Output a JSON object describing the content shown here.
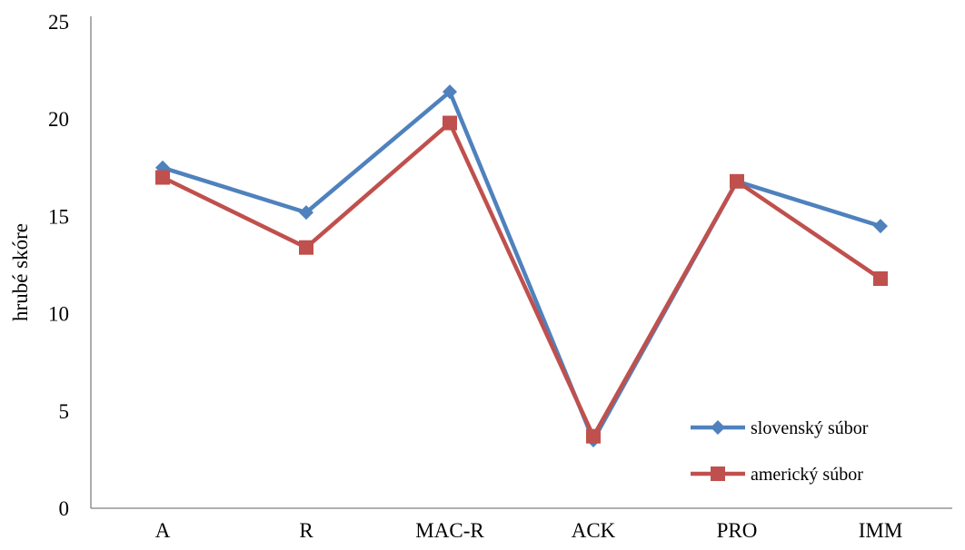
{
  "chart_data": {
    "type": "line",
    "title": "",
    "xlabel": "",
    "ylabel": "hrubé skóre",
    "categories": [
      "A",
      "R",
      "MAC-R",
      "ACK",
      "PRO",
      "IMM"
    ],
    "ylim": [
      0,
      25
    ],
    "yticks": [
      0,
      5,
      10,
      15,
      20,
      25
    ],
    "grid": false,
    "legend_position": "bottom-right",
    "series": [
      {
        "name": "slovenský súbor",
        "values": [
          17.5,
          15.2,
          21.4,
          3.5,
          16.8,
          14.5
        ],
        "color": "#4F81BD",
        "marker": "diamond"
      },
      {
        "name": "americký súbor",
        "values": [
          17.0,
          13.4,
          19.8,
          3.7,
          16.8,
          11.8
        ],
        "color": "#C0504D",
        "marker": "square"
      }
    ]
  }
}
